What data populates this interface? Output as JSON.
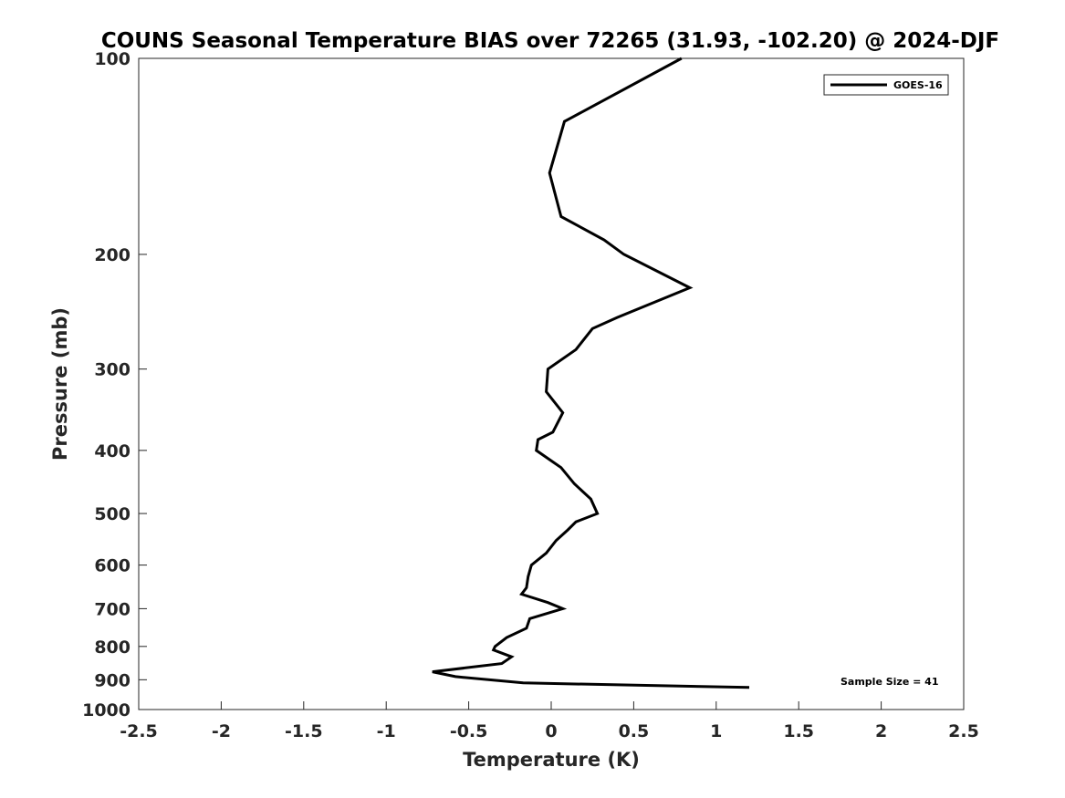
{
  "chart_data": {
    "type": "line",
    "title": "COUNS Seasonal Temperature BIAS over 72265 (31.93, -102.20) @ 2024-DJF",
    "xlabel": "Temperature (K)",
    "ylabel": "Pressure (mb)",
    "xlim": [
      -2.5,
      2.5
    ],
    "ylim": [
      100,
      1000
    ],
    "yscale": "log",
    "y_reversed": true,
    "grid": false,
    "legend_position": "top-right",
    "x_ticks": [
      "-2.5",
      "-2",
      "-1.5",
      "-1",
      "-0.5",
      "0",
      "0.5",
      "1",
      "1.5",
      "2",
      "2.5"
    ],
    "x_tick_values": [
      -2.5,
      -2,
      -1.5,
      -1,
      -0.5,
      0,
      0.5,
      1,
      1.5,
      2,
      2.5
    ],
    "y_ticks": [
      "100",
      "200",
      "300",
      "400",
      "500",
      "600",
      "700",
      "800",
      "900",
      "1000"
    ],
    "y_tick_values": [
      100,
      200,
      300,
      400,
      500,
      600,
      700,
      800,
      900,
      1000
    ],
    "annotation": "Sample Size = 41",
    "series": [
      {
        "name": "GOES-16",
        "color": "#000000",
        "points": [
          [
            0.79,
            100
          ],
          [
            0.08,
            125
          ],
          [
            -0.01,
            150
          ],
          [
            0.06,
            175
          ],
          [
            0.32,
            190
          ],
          [
            0.44,
            200
          ],
          [
            0.84,
            225
          ],
          [
            0.4,
            250
          ],
          [
            0.25,
            260
          ],
          [
            0.15,
            280
          ],
          [
            -0.02,
            300
          ],
          [
            -0.03,
            325
          ],
          [
            0.07,
            350
          ],
          [
            0.01,
            375
          ],
          [
            -0.08,
            385
          ],
          [
            -0.09,
            400
          ],
          [
            0.06,
            425
          ],
          [
            0.14,
            450
          ],
          [
            0.24,
            475
          ],
          [
            0.28,
            500
          ],
          [
            0.15,
            515
          ],
          [
            0.1,
            530
          ],
          [
            0.03,
            550
          ],
          [
            -0.03,
            575
          ],
          [
            -0.12,
            600
          ],
          [
            -0.14,
            625
          ],
          [
            -0.15,
            650
          ],
          [
            -0.18,
            665
          ],
          [
            -0.02,
            685
          ],
          [
            0.07,
            700
          ],
          [
            -0.13,
            725
          ],
          [
            -0.15,
            750
          ],
          [
            -0.27,
            775
          ],
          [
            -0.34,
            800
          ],
          [
            -0.35,
            810
          ],
          [
            -0.24,
            830
          ],
          [
            -0.3,
            850
          ],
          [
            -0.72,
            875
          ],
          [
            -0.58,
            890
          ],
          [
            -0.17,
            910
          ],
          [
            1.2,
            925
          ]
        ]
      }
    ]
  }
}
